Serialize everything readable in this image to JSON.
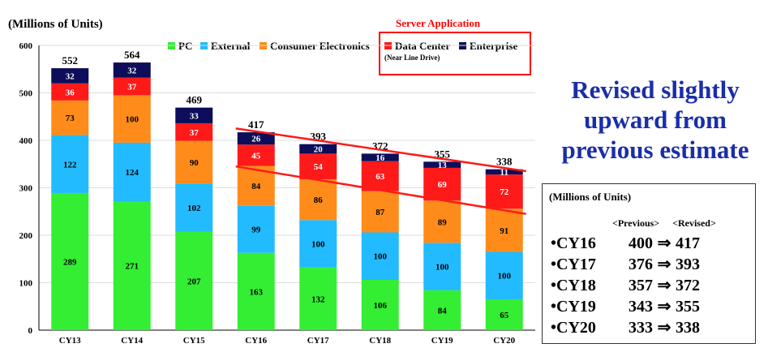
{
  "chart_data": {
    "type": "bar",
    "stacked": true,
    "ylabel": "(Millions of Units)",
    "ylim": [
      0,
      600
    ],
    "yticks": [
      0,
      100,
      200,
      300,
      400,
      500,
      600
    ],
    "categories": [
      "CY13",
      "CY14",
      "CY15",
      "CY16",
      "CY17",
      "CY18",
      "CY19",
      "CY20"
    ],
    "series": [
      {
        "name": "PC",
        "color": "#33ee33",
        "values": [
          289,
          271,
          207,
          163,
          132,
          106,
          84,
          65
        ]
      },
      {
        "name": "External",
        "color": "#22bbff",
        "values": [
          122,
          124,
          102,
          99,
          100,
          100,
          100,
          100
        ]
      },
      {
        "name": "Consumer Electronics",
        "color": "#ff8c1a",
        "values": [
          73,
          100,
          90,
          84,
          86,
          87,
          89,
          91
        ]
      },
      {
        "name": "Data Center",
        "color": "#ff1a1a",
        "values": [
          36,
          37,
          37,
          45,
          54,
          63,
          69,
          72
        ]
      },
      {
        "name": "Enterprise",
        "color": "#0d0d5a",
        "values": [
          32,
          32,
          33,
          26,
          20,
          16,
          13,
          11
        ]
      }
    ],
    "totals": [
      552,
      564,
      469,
      417,
      393,
      372,
      355,
      338
    ],
    "legend": {
      "server_group_title": "Server Application",
      "data_center_note": "(Near Line Drive)"
    },
    "trend_lines": [
      {
        "from": {
          "x": "CY16",
          "y": 425
        },
        "to": {
          "x": "CY20",
          "y": 335
        }
      },
      {
        "from": {
          "x": "CY16",
          "y": 345
        },
        "to": {
          "x": "CY20",
          "y": 245
        }
      }
    ]
  },
  "headline": [
    "Revised slightly",
    "upward from",
    "previous estimate"
  ],
  "estimates_box": {
    "units": "(Millions of Units)",
    "previous_label": "<Previous>",
    "revised_label": "<Revised>",
    "arrow": "⇒",
    "rows": [
      {
        "year": "•CY16",
        "previous": "400",
        "revised": "417"
      },
      {
        "year": "•CY17",
        "previous": "376",
        "revised": "393"
      },
      {
        "year": "•CY18",
        "previous": "357",
        "revised": "372"
      },
      {
        "year": "•CY19",
        "previous": "343",
        "revised": "355"
      },
      {
        "year": "•CY20",
        "previous": "333",
        "revised": "338"
      }
    ]
  }
}
